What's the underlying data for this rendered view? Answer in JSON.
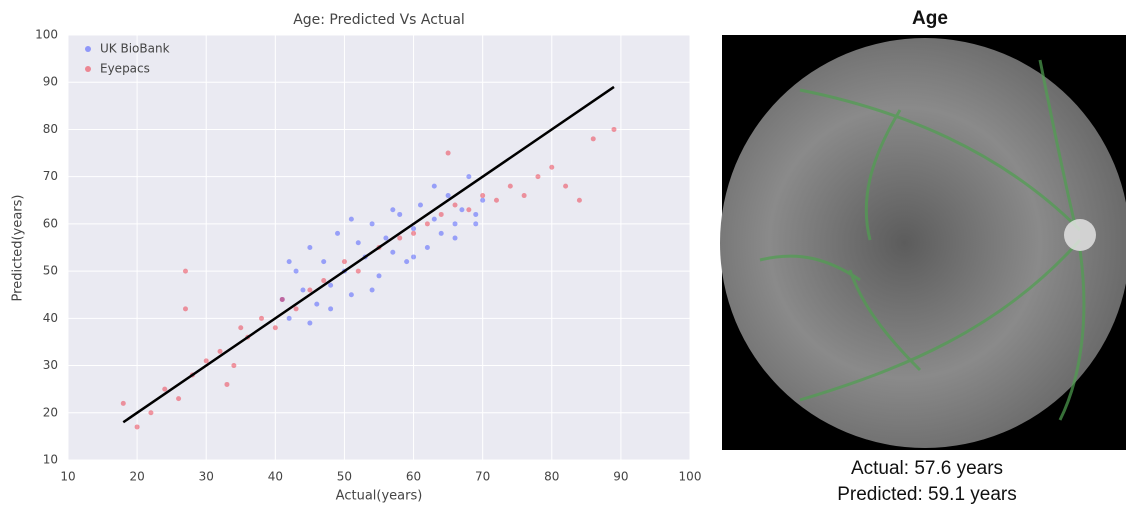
{
  "chart_data": {
    "type": "scatter",
    "title": "Age: Predicted Vs Actual",
    "x_label": "Actual(years)",
    "y_label": "Predicted(years)",
    "xlim": [
      10,
      100
    ],
    "ylim": [
      10,
      100
    ],
    "xticks": [
      10,
      20,
      30,
      40,
      50,
      60,
      70,
      80,
      90,
      100
    ],
    "yticks": [
      10,
      20,
      30,
      40,
      50,
      60,
      70,
      80,
      90,
      100
    ],
    "grid": true,
    "legend": "upper left",
    "series": [
      {
        "name": "UK BioBank",
        "color": "#3344ff",
        "x": [
          41,
          42,
          43,
          44,
          45,
          46,
          47,
          48,
          49,
          50,
          51,
          52,
          53,
          54,
          55,
          56,
          57,
          58,
          59,
          60,
          61,
          62,
          63,
          64,
          65,
          66,
          67,
          68,
          69,
          70,
          42,
          45,
          48,
          51,
          54,
          57,
          60,
          63,
          66,
          69
        ],
        "y": [
          44,
          40,
          50,
          46,
          55,
          43,
          52,
          47,
          58,
          50,
          45,
          56,
          53,
          60,
          49,
          57,
          54,
          62,
          52,
          59,
          64,
          55,
          61,
          58,
          66,
          60,
          63,
          70,
          62,
          65,
          52,
          39,
          42,
          61,
          46,
          63,
          53,
          68,
          57,
          60
        ]
      },
      {
        "name": "Eyepacs",
        "color": "#ee2233",
        "x": [
          18,
          20,
          22,
          24,
          26,
          27,
          28,
          30,
          32,
          34,
          35,
          36,
          38,
          40,
          41,
          43,
          45,
          47,
          50,
          52,
          55,
          58,
          60,
          62,
          64,
          66,
          68,
          70,
          72,
          74,
          76,
          78,
          80,
          82,
          84,
          86,
          89,
          27,
          33,
          65
        ],
        "y": [
          22,
          17,
          20,
          25,
          23,
          50,
          28,
          31,
          33,
          30,
          38,
          36,
          40,
          38,
          44,
          42,
          46,
          48,
          52,
          50,
          55,
          57,
          58,
          60,
          62,
          64,
          63,
          66,
          65,
          68,
          66,
          70,
          72,
          68,
          65,
          78,
          80,
          42,
          26,
          75
        ]
      }
    ],
    "reference_line": {
      "color": "#000000",
      "x": [
        18,
        89
      ],
      "y": [
        18,
        89
      ]
    }
  },
  "image_panel": {
    "title": "Age",
    "lines": [
      "Actual: 57.6 years",
      "Predicted: 59.1 years"
    ]
  }
}
